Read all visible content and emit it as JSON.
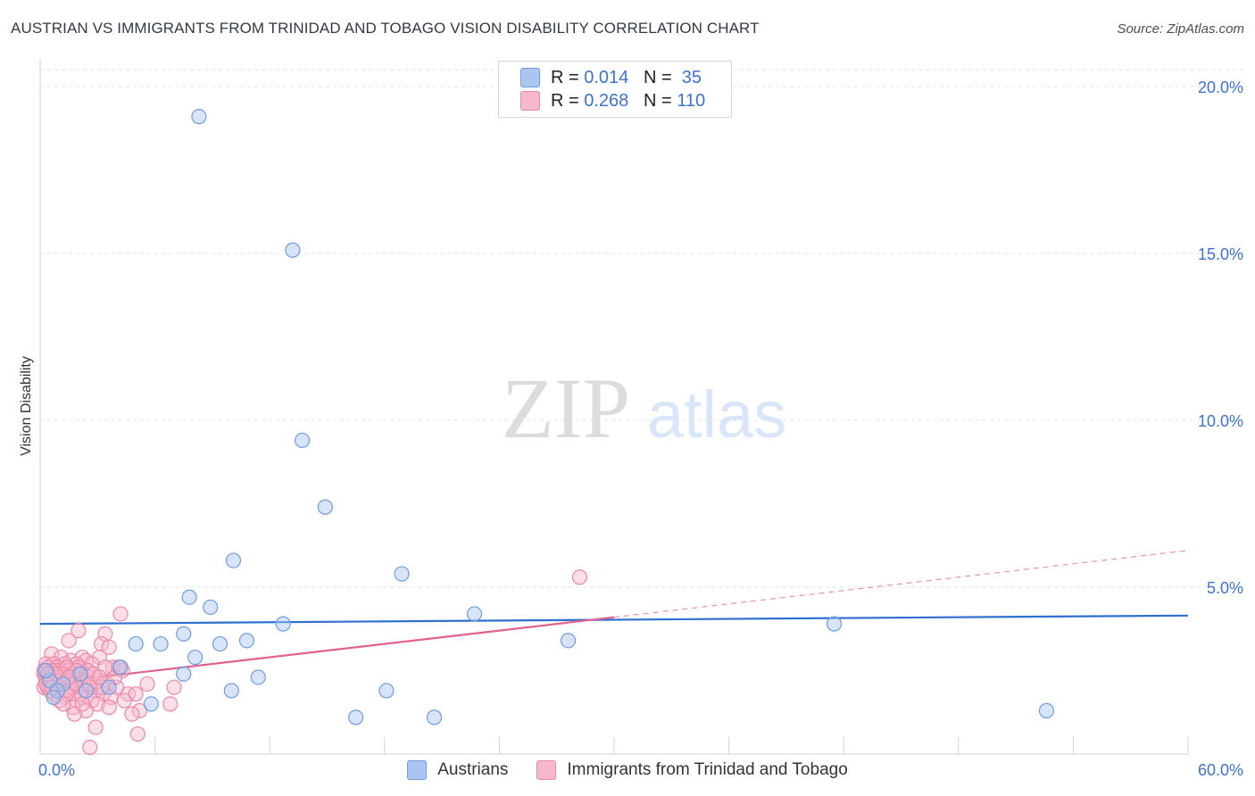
{
  "header": {
    "title": "AUSTRIAN VS IMMIGRANTS FROM TRINIDAD AND TOBAGO VISION DISABILITY CORRELATION CHART",
    "source": "Source: ZipAtlas.com"
  },
  "watermark": {
    "zip": "ZIP",
    "atlas": "atlas"
  },
  "legend": {
    "rows": [
      {
        "r_label": "R =",
        "r_value": "0.014",
        "n_label": "N =",
        "n_value": "35",
        "color": "#a9c5f0",
        "border": "#6f9be0"
      },
      {
        "r_label": "R =",
        "r_value": "0.268",
        "n_label": "N =",
        "n_value": "110",
        "color": "#f7b8cc",
        "border": "#ec88a8"
      }
    ]
  },
  "chart_data": {
    "type": "scatter",
    "title": "AUSTRIAN VS IMMIGRANTS FROM TRINIDAD AND TOBAGO VISION DISABILITY CORRELATION CHART",
    "xlabel": "",
    "ylabel": "Vision Disability",
    "xlim": [
      0,
      60
    ],
    "ylim": [
      0,
      20
    ],
    "x_tick_labels": [
      "0.0%",
      "60.0%"
    ],
    "y_ticks": [
      5,
      10,
      15,
      20
    ],
    "y_tick_labels": [
      "5.0%",
      "10.0%",
      "15.0%",
      "20.0%"
    ],
    "grid": true,
    "legend_position": "bottom",
    "series": [
      {
        "name": "Austrians",
        "color": "#6f9be0",
        "fill": "#a9c5f0",
        "trend": {
          "x": [
            0,
            60
          ],
          "y": [
            3.9,
            4.15
          ],
          "style": "solid",
          "color": "#2f6fcf"
        },
        "points": [
          [
            8.3,
            19.1
          ],
          [
            13.2,
            15.1
          ],
          [
            13.7,
            9.4
          ],
          [
            14.9,
            7.4
          ],
          [
            10.1,
            5.8
          ],
          [
            18.9,
            5.4
          ],
          [
            7.8,
            4.7
          ],
          [
            8.9,
            4.4
          ],
          [
            22.7,
            4.2
          ],
          [
            12.7,
            3.9
          ],
          [
            41.5,
            3.9
          ],
          [
            7.5,
            3.6
          ],
          [
            6.3,
            3.3
          ],
          [
            5.0,
            3.3
          ],
          [
            10.8,
            3.4
          ],
          [
            27.6,
            3.4
          ],
          [
            9.4,
            3.3
          ],
          [
            8.1,
            2.9
          ],
          [
            4.2,
            2.6
          ],
          [
            2.1,
            2.4
          ],
          [
            7.5,
            2.4
          ],
          [
            11.4,
            2.3
          ],
          [
            0.5,
            2.2
          ],
          [
            1.2,
            2.1
          ],
          [
            3.6,
            2.0
          ],
          [
            10.0,
            1.9
          ],
          [
            18.1,
            1.9
          ],
          [
            0.9,
            1.9
          ],
          [
            2.4,
            1.9
          ],
          [
            0.3,
            2.5
          ],
          [
            5.8,
            1.5
          ],
          [
            16.5,
            1.1
          ],
          [
            20.6,
            1.1
          ],
          [
            52.6,
            1.3
          ],
          [
            0.7,
            1.7
          ]
        ]
      },
      {
        "name": "Immigrants from Trinidad and Tobago",
        "color": "#ec88a8",
        "fill": "#f7b8cc",
        "trend": {
          "x": [
            0,
            30
          ],
          "y": [
            2.1,
            4.1
          ],
          "style": "solid",
          "color": "#e0628e",
          "extension": {
            "x": [
              30,
              60
            ],
            "y": [
              4.1,
              6.1
            ],
            "style": "dashed"
          }
        },
        "points": [
          [
            28.2,
            5.3
          ],
          [
            4.2,
            4.2
          ],
          [
            2.0,
            3.7
          ],
          [
            3.4,
            3.6
          ],
          [
            3.2,
            3.3
          ],
          [
            3.6,
            3.2
          ],
          [
            1.5,
            3.4
          ],
          [
            0.6,
            3.0
          ],
          [
            1.1,
            2.9
          ],
          [
            2.2,
            2.9
          ],
          [
            3.1,
            2.9
          ],
          [
            1.6,
            2.8
          ],
          [
            2.4,
            2.8
          ],
          [
            0.3,
            2.7
          ],
          [
            0.7,
            2.7
          ],
          [
            1.3,
            2.7
          ],
          [
            1.9,
            2.7
          ],
          [
            2.7,
            2.7
          ],
          [
            3.8,
            2.6
          ],
          [
            4.3,
            2.5
          ],
          [
            0.4,
            2.6
          ],
          [
            0.9,
            2.6
          ],
          [
            1.0,
            2.5
          ],
          [
            1.5,
            2.5
          ],
          [
            2.0,
            2.4
          ],
          [
            2.3,
            2.4
          ],
          [
            0.2,
            2.4
          ],
          [
            0.5,
            2.4
          ],
          [
            0.8,
            2.3
          ],
          [
            1.2,
            2.3
          ],
          [
            1.7,
            2.3
          ],
          [
            2.5,
            2.3
          ],
          [
            3.0,
            2.2
          ],
          [
            0.3,
            2.2
          ],
          [
            0.6,
            2.2
          ],
          [
            1.4,
            2.2
          ],
          [
            1.8,
            2.2
          ],
          [
            2.8,
            2.1
          ],
          [
            3.5,
            2.1
          ],
          [
            0.4,
            2.1
          ],
          [
            0.9,
            2.1
          ],
          [
            1.1,
            2.0
          ],
          [
            2.1,
            2.0
          ],
          [
            2.6,
            2.0
          ],
          [
            4.0,
            2.0
          ],
          [
            5.6,
            2.1
          ],
          [
            7.0,
            2.0
          ],
          [
            0.2,
            2.0
          ],
          [
            1.6,
            1.9
          ],
          [
            2.9,
            1.9
          ],
          [
            3.3,
            1.8
          ],
          [
            4.6,
            1.8
          ],
          [
            0.7,
            1.8
          ],
          [
            1.3,
            1.7
          ],
          [
            2.2,
            1.7
          ],
          [
            3.7,
            1.7
          ],
          [
            5.0,
            1.8
          ],
          [
            0.5,
            1.9
          ],
          [
            1.9,
            1.6
          ],
          [
            2.7,
            1.6
          ],
          [
            4.4,
            1.6
          ],
          [
            6.8,
            1.5
          ],
          [
            1.0,
            1.6
          ],
          [
            3.0,
            1.5
          ],
          [
            1.7,
            1.4
          ],
          [
            3.6,
            1.4
          ],
          [
            5.2,
            1.3
          ],
          [
            2.4,
            1.3
          ],
          [
            4.8,
            1.2
          ],
          [
            1.8,
            1.2
          ],
          [
            2.9,
            0.8
          ],
          [
            5.1,
            0.6
          ],
          [
            2.6,
            0.2
          ],
          [
            0.8,
            2.5
          ],
          [
            1.4,
            2.6
          ],
          [
            2.0,
            2.6
          ],
          [
            0.3,
            2.3
          ],
          [
            1.1,
            2.4
          ],
          [
            0.6,
            2.5
          ],
          [
            1.5,
            2.1
          ],
          [
            2.3,
            2.2
          ],
          [
            0.4,
            2.0
          ],
          [
            0.9,
            2.3
          ],
          [
            1.2,
            2.2
          ],
          [
            1.7,
            2.4
          ],
          [
            3.9,
            2.3
          ],
          [
            0.2,
            2.5
          ],
          [
            0.7,
            2.1
          ],
          [
            1.3,
            1.9
          ],
          [
            2.1,
            1.8
          ],
          [
            2.5,
            2.5
          ],
          [
            3.2,
            2.0
          ],
          [
            1.6,
            2.0
          ],
          [
            0.5,
            2.3
          ],
          [
            1.0,
            2.2
          ],
          [
            1.8,
            2.1
          ],
          [
            2.8,
            2.4
          ],
          [
            0.3,
            2.1
          ],
          [
            1.4,
            1.8
          ],
          [
            2.2,
            1.5
          ],
          [
            3.4,
            2.6
          ],
          [
            0.8,
            2.4
          ],
          [
            1.9,
            2.5
          ],
          [
            2.6,
            2.1
          ],
          [
            0.6,
            2.0
          ],
          [
            1.2,
            1.5
          ],
          [
            3.1,
            2.3
          ],
          [
            4.1,
            2.6
          ],
          [
            0.4,
            2.4
          ],
          [
            1.5,
            2.3
          ]
        ]
      }
    ]
  },
  "bottom_legend": {
    "items": [
      {
        "label": "Austrians",
        "color": "#a9c5f0",
        "border": "#6f9be0"
      },
      {
        "label": "Immigrants from Trinidad and Tobago",
        "color": "#f7b8cc",
        "border": "#ec88a8"
      }
    ]
  }
}
